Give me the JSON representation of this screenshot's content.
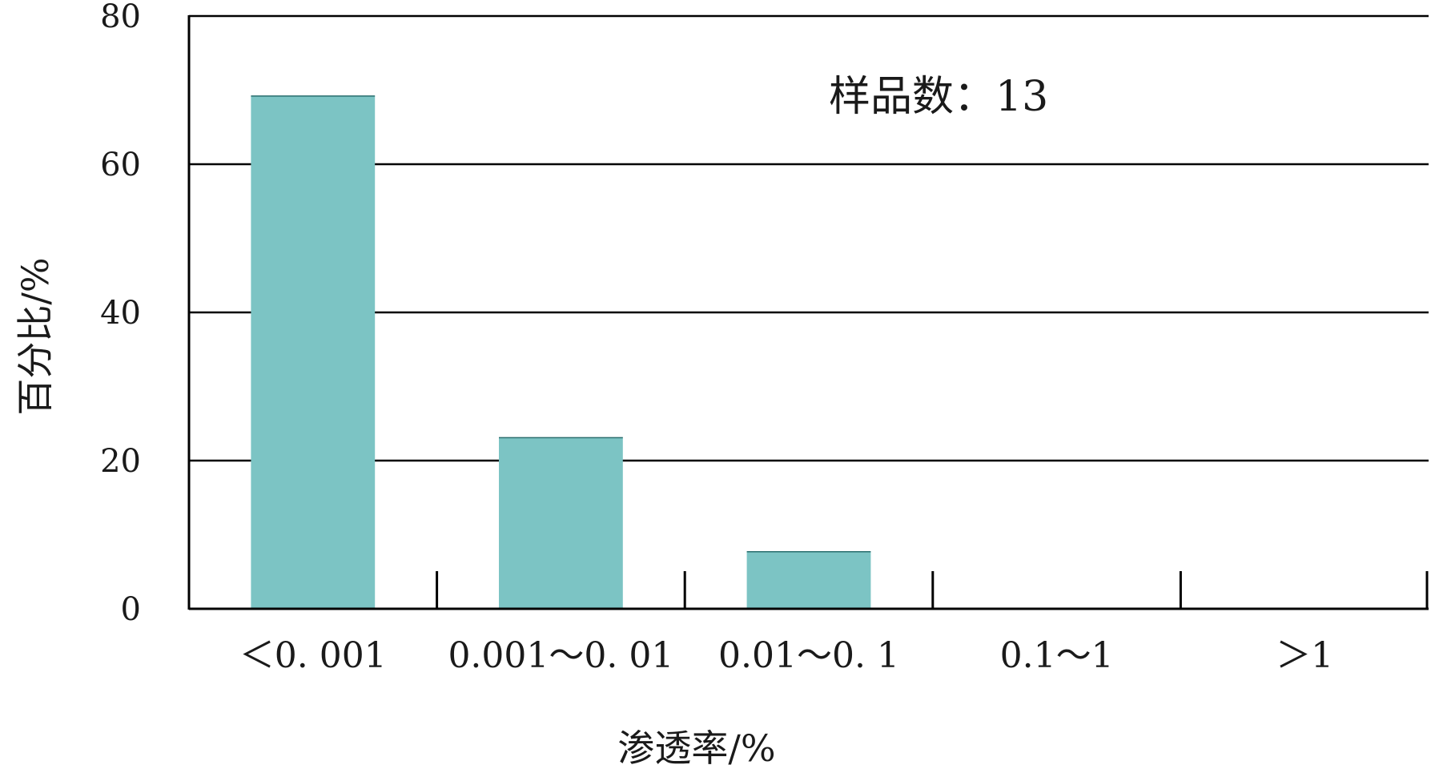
{
  "chart_data": {
    "type": "bar",
    "categories": [
      "＜0. 001",
      "0.001～0. 01",
      "0.01～0. 1",
      "0.1～1",
      "＞1"
    ],
    "values": [
      69.2,
      23.1,
      7.7,
      0,
      0
    ],
    "ylim": [
      0,
      80
    ],
    "yticks": [
      0,
      20,
      40,
      60,
      80
    ],
    "ylabel": "百分比/%",
    "xlabel": "渗透率/%",
    "annotation": "样品数：13",
    "grid": true,
    "bar_color": "#7cc4c4",
    "bar_edge_color": "#2a6e6e"
  }
}
